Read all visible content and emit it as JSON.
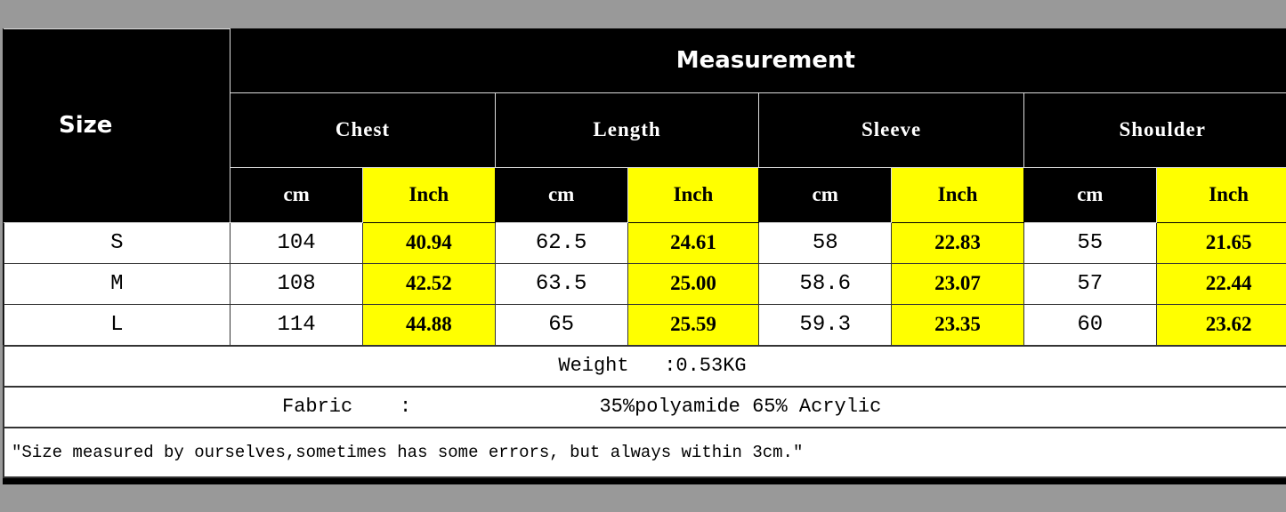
{
  "header": {
    "size": "Size",
    "measurement": "Measurement",
    "groups": [
      "Chest",
      "Length",
      "Sleeve",
      "Shoulder"
    ],
    "units": {
      "cm": "cm",
      "inch": "Inch"
    }
  },
  "rows": [
    {
      "size": "S",
      "values": [
        "104",
        "40.94",
        "62.5",
        "24.61",
        "58",
        "22.83",
        "55",
        "21.65"
      ]
    },
    {
      "size": "M",
      "values": [
        "108",
        "42.52",
        "63.5",
        "25.00",
        "58.6",
        "23.07",
        "57",
        "22.44"
      ]
    },
    {
      "size": "L",
      "values": [
        "114",
        "44.88",
        "65",
        "25.59",
        "59.3",
        "23.35",
        "60",
        "23.62"
      ]
    }
  ],
  "weight": "Weight   :0.53KG",
  "fabric": "Fabric    :                35%polyamide 65% Acrylic",
  "note": "\"Size measured by ourselves,sometimes has some errors, but always within 3cm.\"",
  "colors": {
    "header_bg": "#000000",
    "inch_bg": "#ffff00",
    "page_bg": "#999999"
  }
}
